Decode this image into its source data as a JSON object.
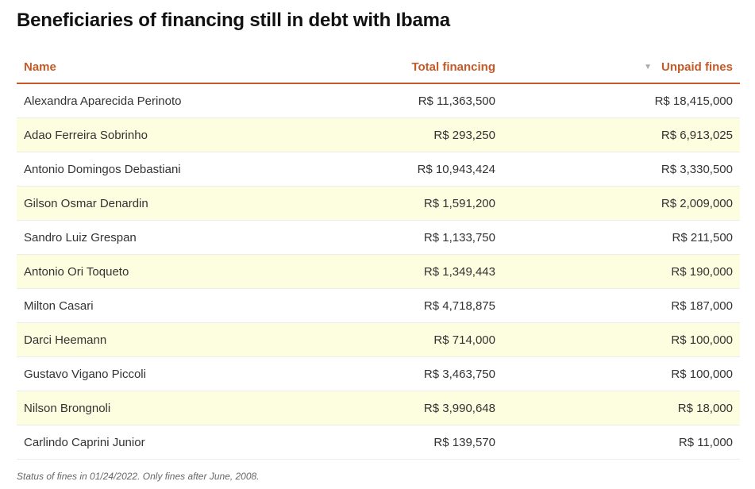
{
  "title": "Beneficiaries of financing still in debt with Ibama",
  "header": {
    "name": "Name",
    "total": "Total financing",
    "unpaid": "Unpaid fines",
    "sort_icon": "sort-descending-icon"
  },
  "colors": {
    "accent": "#c55a28",
    "alt_row": "#fdfde0"
  },
  "rows": [
    {
      "name": "Alexandra Aparecida Perinoto",
      "total": "R$ 11,363,500",
      "unpaid": "R$ 18,415,000"
    },
    {
      "name": "Adao Ferreira Sobrinho",
      "total": "R$ 293,250",
      "unpaid": "R$ 6,913,025"
    },
    {
      "name": "Antonio Domingos Debastiani",
      "total": "R$ 10,943,424",
      "unpaid": "R$ 3,330,500"
    },
    {
      "name": "Gilson Osmar Denardin",
      "total": "R$ 1,591,200",
      "unpaid": "R$ 2,009,000"
    },
    {
      "name": "Sandro Luiz Grespan",
      "total": "R$ 1,133,750",
      "unpaid": "R$ 211,500"
    },
    {
      "name": "Antonio Ori Toqueto",
      "total": "R$ 1,349,443",
      "unpaid": "R$ 190,000"
    },
    {
      "name": "Milton Casari",
      "total": "R$ 4,718,875",
      "unpaid": "R$ 187,000"
    },
    {
      "name": "Darci Heemann",
      "total": "R$ 714,000",
      "unpaid": "R$ 100,000"
    },
    {
      "name": "Gustavo Vigano Piccoli",
      "total": "R$ 3,463,750",
      "unpaid": "R$ 100,000"
    },
    {
      "name": "Nilson Brongnoli",
      "total": "R$ 3,990,648",
      "unpaid": "R$ 18,000"
    },
    {
      "name": "Carlindo Caprini Junior",
      "total": "R$ 139,570",
      "unpaid": "R$ 11,000"
    }
  ],
  "footnote": "Status of fines in 01/24/2022. Only fines after June, 2008."
}
